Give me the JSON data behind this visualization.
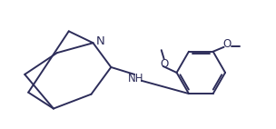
{
  "bg_color": "#ffffff",
  "line_color": "#2d2d5a",
  "line_width": 1.4,
  "font_size": 8.5,
  "figsize": [
    3.04,
    1.42
  ],
  "dpi": 100,
  "xlim": [
    0.0,
    3.04
  ],
  "ylim": [
    0.0,
    1.42
  ]
}
